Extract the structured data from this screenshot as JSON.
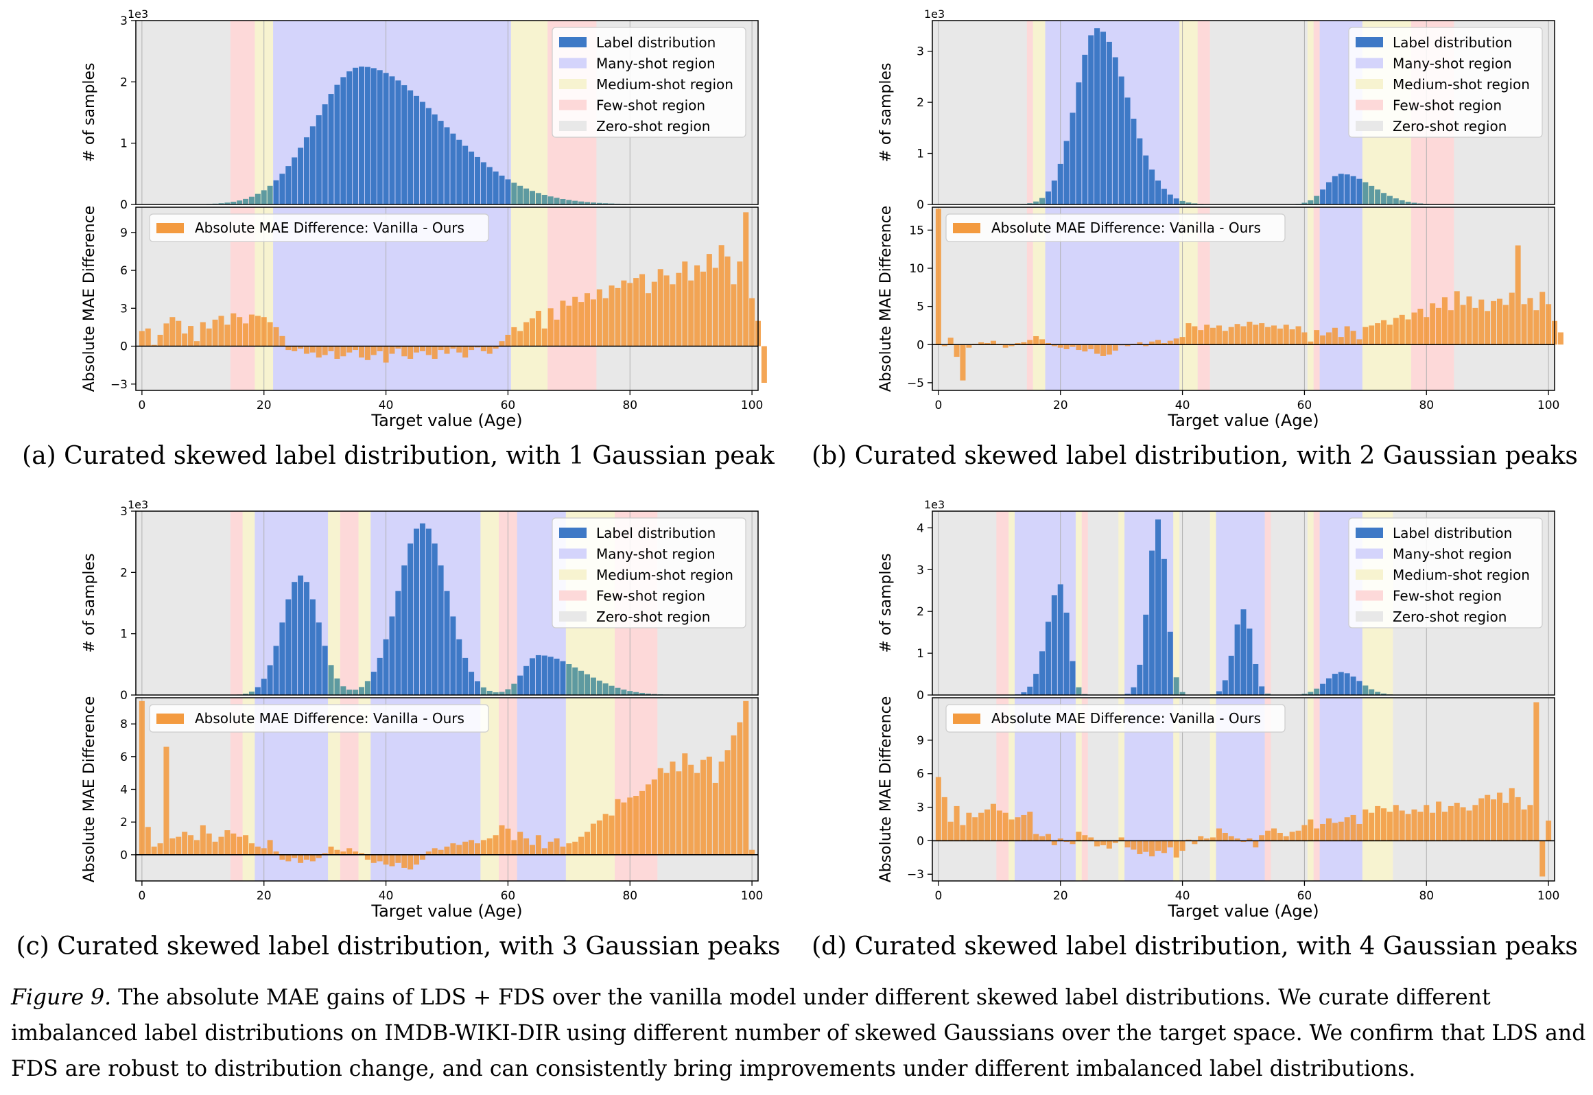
{
  "colors": {
    "zero": "#e8e8e8",
    "many": "#d4d4fb",
    "medium": "#f7f3d0",
    "few": "#fdd9d9",
    "bar_blue": "#3e79c6",
    "bar_orange": "#f39a3f",
    "grid": "#b0b0b0"
  },
  "legend_top": [
    "Label distribution",
    "Many-shot region",
    "Medium-shot region",
    "Few-shot region",
    "Zero-shot region"
  ],
  "legend_bottom": "Absolute MAE Difference: Vanilla - Ours",
  "xlabel": "Target value (Age)",
  "ylabel_top": "# of samples",
  "ylabel_bottom": "Absolute MAE Difference",
  "offset_text": "1e3",
  "x_ticks": [
    "0",
    "20",
    "40",
    "60",
    "80",
    "100"
  ],
  "figure_caption": {
    "label": "Figure 9.",
    "text": " The absolute MAE gains of LDS + FDS over the vanilla model under different skewed label distributions. We curate different imbalanced label distributions on IMDB-WIKI-DIR using different number of skewed Gaussians over the target space. We confirm that LDS and FDS are robust to distribution change, and can consistently bring improvements under different imbalanced label distributions."
  },
  "chart_data": [
    {
      "caption": "(a)  Curated skewed label distribution, with 1 Gaussian peak",
      "type": "bar",
      "x": [
        0,
        100
      ],
      "top_ylim": [
        0,
        3
      ],
      "top_ytick_labels": [
        "0",
        "1",
        "2",
        "3"
      ],
      "bottom_ylim": [
        -3.5,
        11
      ],
      "bottom_ytick_labels": [
        "-3",
        "0",
        "3",
        "6",
        "9"
      ],
      "regions": [
        {
          "from": 15,
          "to": 19,
          "kind": "few"
        },
        {
          "from": 19,
          "to": 22,
          "kind": "medium"
        },
        {
          "from": 22,
          "to": 61,
          "kind": "many"
        },
        {
          "from": 61,
          "to": 67,
          "kind": "medium"
        },
        {
          "from": 67,
          "to": 75,
          "kind": "few"
        }
      ],
      "peaks": [
        {
          "mu": 36,
          "sig_left": 7.5,
          "sig_right": 13,
          "amp": 2.25
        }
      ],
      "mae_difference": [
        1.2,
        1.4,
        0.1,
        0.9,
        1.8,
        2.3,
        2.0,
        1.0,
        1.6,
        0.4,
        1.9,
        1.4,
        2.1,
        2.4,
        1.7,
        2.6,
        2.3,
        1.8,
        2.5,
        2.4,
        2.3,
        1.9,
        1.5,
        0.8,
        -0.3,
        -0.4,
        -0.2,
        -0.6,
        -0.5,
        -0.9,
        -0.7,
        -0.4,
        -1.0,
        -0.8,
        -0.5,
        -0.3,
        -0.9,
        -1.1,
        -0.7,
        -0.4,
        -1.3,
        -0.6,
        -0.2,
        -0.8,
        -1.0,
        -0.5,
        -0.4,
        -0.7,
        -1.0,
        -0.3,
        -0.6,
        -0.2,
        -0.5,
        -0.9,
        -0.3,
        -0.1,
        -0.4,
        -0.6,
        -0.2,
        0.4,
        0.9,
        1.5,
        1.2,
        1.9,
        2.2,
        2.8,
        1.4,
        3.0,
        2.1,
        3.6,
        3.2,
        3.9,
        3.5,
        4.2,
        3.7,
        4.5,
        3.8,
        4.8,
        4.6,
        5.2,
        5.0,
        5.4,
        5.7,
        4.2,
        5.1,
        6.1,
        5.6,
        4.9,
        5.8,
        6.7,
        5.2,
        6.4,
        5.9,
        7.3,
        6.2,
        8.0,
        7.1,
        4.9,
        6.7,
        10.6,
        3.8,
        2.0,
        -2.9
      ]
    },
    {
      "caption": "(b)  Curated skewed label distribution, with 2 Gaussian peaks",
      "type": "bar",
      "x": [
        0,
        100
      ],
      "top_ylim": [
        0,
        3.6
      ],
      "top_ytick_labels": [
        "0",
        "1",
        "2",
        "3"
      ],
      "bottom_ylim": [
        -6,
        18
      ],
      "bottom_ytick_labels": [
        "-5",
        "0",
        "5",
        "10",
        "15"
      ],
      "regions": [
        {
          "from": 15,
          "to": 16,
          "kind": "few"
        },
        {
          "from": 16,
          "to": 18,
          "kind": "medium"
        },
        {
          "from": 18,
          "to": 40,
          "kind": "many"
        },
        {
          "from": 40,
          "to": 43,
          "kind": "medium"
        },
        {
          "from": 43,
          "to": 45,
          "kind": "few"
        },
        {
          "from": 61,
          "to": 62,
          "kind": "medium"
        },
        {
          "from": 62,
          "to": 63,
          "kind": "few"
        },
        {
          "from": 63,
          "to": 70,
          "kind": "many"
        },
        {
          "from": 70,
          "to": 78,
          "kind": "medium"
        },
        {
          "from": 78,
          "to": 85,
          "kind": "few"
        }
      ],
      "peaks": [
        {
          "mu": 26,
          "sig_left": 3.5,
          "sig_right": 5,
          "amp": 3.45
        },
        {
          "mu": 66,
          "sig_left": 2.5,
          "sig_right": 5,
          "amp": 0.6
        }
      ],
      "mae_difference": [
        17.8,
        -0.2,
        0.9,
        -1.6,
        -4.7,
        -0.4,
        0.1,
        0.3,
        0.2,
        0.5,
        0.1,
        -0.4,
        -0.2,
        0.2,
        0.3,
        0.6,
        1.1,
        0.7,
        0.2,
        -0.2,
        -0.4,
        -0.6,
        -0.3,
        -0.7,
        -0.9,
        -0.6,
        -1.2,
        -1.5,
        -1.3,
        -0.8,
        -0.1,
        -0.2,
        0.1,
        0.3,
        -0.2,
        0.4,
        0.6,
        0.2,
        0.5,
        0.8,
        1.0,
        2.8,
        2.4,
        1.9,
        2.6,
        2.2,
        2.5,
        1.8,
        2.3,
        2.7,
        2.4,
        3.0,
        2.6,
        2.8,
        2.3,
        2.5,
        2.1,
        2.6,
        2.0,
        2.4,
        1.6,
        0.4,
        1.9,
        1.2,
        1.6,
        2.2,
        1.0,
        2.4,
        1.8,
        0.7,
        2.3,
        2.5,
        2.8,
        3.2,
        2.6,
        3.5,
        3.9,
        3.3,
        4.2,
        4.7,
        3.6,
        5.4,
        4.8,
        6.2,
        4.5,
        7.0,
        5.2,
        6.3,
        4.8,
        5.9,
        4.4,
        5.7,
        6.0,
        5.2,
        6.8,
        13.0,
        5.3,
        6.1,
        4.5,
        6.9,
        5.3,
        3.1,
        1.6
      ]
    },
    {
      "caption": "(c)  Curated skewed label distribution, with 3 Gaussian peaks",
      "type": "bar",
      "x": [
        0,
        100
      ],
      "top_ylim": [
        0,
        3
      ],
      "top_ytick_labels": [
        "0",
        "1",
        "2",
        "3"
      ],
      "bottom_ylim": [
        -1.6,
        9.6
      ],
      "bottom_ytick_labels": [
        "0",
        "2",
        "4",
        "6",
        "8"
      ],
      "regions": [
        {
          "from": 15,
          "to": 17,
          "kind": "few"
        },
        {
          "from": 17,
          "to": 19,
          "kind": "medium"
        },
        {
          "from": 19,
          "to": 31,
          "kind": "many"
        },
        {
          "from": 31,
          "to": 33,
          "kind": "medium"
        },
        {
          "from": 33,
          "to": 36,
          "kind": "few"
        },
        {
          "from": 36,
          "to": 38,
          "kind": "medium"
        },
        {
          "from": 38,
          "to": 56,
          "kind": "many"
        },
        {
          "from": 56,
          "to": 59,
          "kind": "medium"
        },
        {
          "from": 59,
          "to": 62,
          "kind": "few"
        },
        {
          "from": 62,
          "to": 70,
          "kind": "many"
        },
        {
          "from": 70,
          "to": 78,
          "kind": "medium"
        },
        {
          "from": 78,
          "to": 85,
          "kind": "few"
        }
      ],
      "peaks": [
        {
          "mu": 26,
          "sig_left": 3,
          "sig_right": 3,
          "amp": 1.95
        },
        {
          "mu": 46,
          "sig_left": 4,
          "sig_right": 4,
          "amp": 2.8
        },
        {
          "mu": 65,
          "sig_left": 2.5,
          "sig_right": 7,
          "amp": 0.65
        }
      ],
      "mae_difference": [
        9.4,
        1.7,
        0.5,
        0.7,
        6.6,
        1.0,
        1.1,
        1.4,
        1.2,
        0.9,
        1.8,
        1.3,
        0.8,
        1.1,
        1.5,
        1.3,
        1.1,
        1.2,
        0.7,
        0.5,
        0.4,
        0.9,
        0.2,
        -0.3,
        -0.4,
        -0.2,
        -0.5,
        -0.3,
        -0.4,
        -0.2,
        0.1,
        0.5,
        0.3,
        0.2,
        0.4,
        0.2,
        0.1,
        -0.3,
        -0.5,
        -0.4,
        -0.6,
        -0.7,
        -0.5,
        -0.8,
        -0.9,
        -0.6,
        -0.3,
        0.2,
        0.4,
        0.3,
        0.5,
        0.7,
        0.6,
        0.8,
        0.9,
        0.7,
        0.9,
        1.0,
        1.2,
        1.8,
        1.6,
        0.9,
        1.4,
        1.0,
        0.6,
        1.2,
        0.4,
        0.8,
        1.0,
        0.5,
        0.7,
        0.8,
        1.1,
        1.4,
        1.9,
        2.1,
        2.5,
        2.4,
        3.4,
        3.2,
        3.5,
        3.6,
        3.9,
        4.3,
        4.6,
        5.3,
        5.0,
        5.7,
        5.1,
        6.2,
        5.5,
        5.0,
        5.8,
        6.0,
        4.4,
        5.7,
        6.4,
        7.3,
        8.1,
        9.4,
        0.3
      ]
    },
    {
      "caption": "(d)  Curated skewed label distribution, with 4 Gaussian peaks",
      "type": "bar",
      "x": [
        0,
        100
      ],
      "top_ylim": [
        0,
        4.4
      ],
      "top_ytick_labels": [
        "0",
        "1",
        "2",
        "3",
        "4"
      ],
      "bottom_ylim": [
        -3.6,
        12.8
      ],
      "bottom_ytick_labels": [
        "-3",
        "0",
        "3",
        "6",
        "9"
      ],
      "regions": [
        {
          "from": 10,
          "to": 12,
          "kind": "few"
        },
        {
          "from": 12,
          "to": 13,
          "kind": "medium"
        },
        {
          "from": 13,
          "to": 23,
          "kind": "many"
        },
        {
          "from": 23,
          "to": 24,
          "kind": "medium"
        },
        {
          "from": 24,
          "to": 25,
          "kind": "few"
        },
        {
          "from": 30,
          "to": 31,
          "kind": "medium"
        },
        {
          "from": 31,
          "to": 39,
          "kind": "many"
        },
        {
          "from": 39,
          "to": 40,
          "kind": "medium"
        },
        {
          "from": 45,
          "to": 46,
          "kind": "medium"
        },
        {
          "from": 46,
          "to": 54,
          "kind": "many"
        },
        {
          "from": 54,
          "to": 55,
          "kind": "few"
        },
        {
          "from": 61,
          "to": 62,
          "kind": "medium"
        },
        {
          "from": 62,
          "to": 63,
          "kind": "few"
        },
        {
          "from": 63,
          "to": 70,
          "kind": "many"
        },
        {
          "from": 70,
          "to": 75,
          "kind": "medium"
        }
      ],
      "peaks": [
        {
          "mu": 20,
          "sig_left": 2.2,
          "sig_right": 1.3,
          "amp": 2.65
        },
        {
          "mu": 36,
          "sig_left": 1.6,
          "sig_right": 1.4,
          "amp": 4.2
        },
        {
          "mu": 50,
          "sig_left": 1.6,
          "sig_right": 1.4,
          "amp": 2.05
        },
        {
          "mu": 66,
          "sig_left": 2.5,
          "sig_right": 3,
          "amp": 0.55
        }
      ],
      "mae_difference": [
        5.7,
        3.9,
        1.7,
        3.1,
        1.4,
        2.5,
        2.1,
        2.5,
        2.8,
        3.3,
        2.7,
        2.5,
        1.9,
        2.1,
        2.3,
        2.6,
        0.6,
        0.4,
        0.6,
        -0.4,
        0.2,
        -0.1,
        -0.3,
        0.8,
        0.5,
        0.3,
        -0.5,
        -0.4,
        -0.7,
        -0.2,
        0.3,
        -0.6,
        -0.8,
        -1.2,
        -1.0,
        -1.4,
        -0.9,
        -1.1,
        -0.6,
        -1.5,
        -0.9,
        0.1,
        -0.3,
        0.4,
        0.2,
        0.3,
        1.1,
        0.7,
        0.4,
        0.2,
        -0.1,
        0.2,
        -0.6,
        0.5,
        0.9,
        1.1,
        0.7,
        0.4,
        0.8,
        0.9,
        1.4,
        1.9,
        1.1,
        1.5,
        2.0,
        1.6,
        1.7,
        2.1,
        2.3,
        1.5,
        2.8,
        2.5,
        3.1,
        2.9,
        2.6,
        3.2,
        2.7,
        2.4,
        2.8,
        2.6,
        3.2,
        2.5,
        3.5,
        2.6,
        3.1,
        3.4,
        3.0,
        2.7,
        3.2,
        3.8,
        4.1,
        3.7,
        4.3,
        3.4,
        4.7,
        3.9,
        2.8,
        3.2,
        12.4,
        -3.2,
        1.8
      ]
    }
  ]
}
